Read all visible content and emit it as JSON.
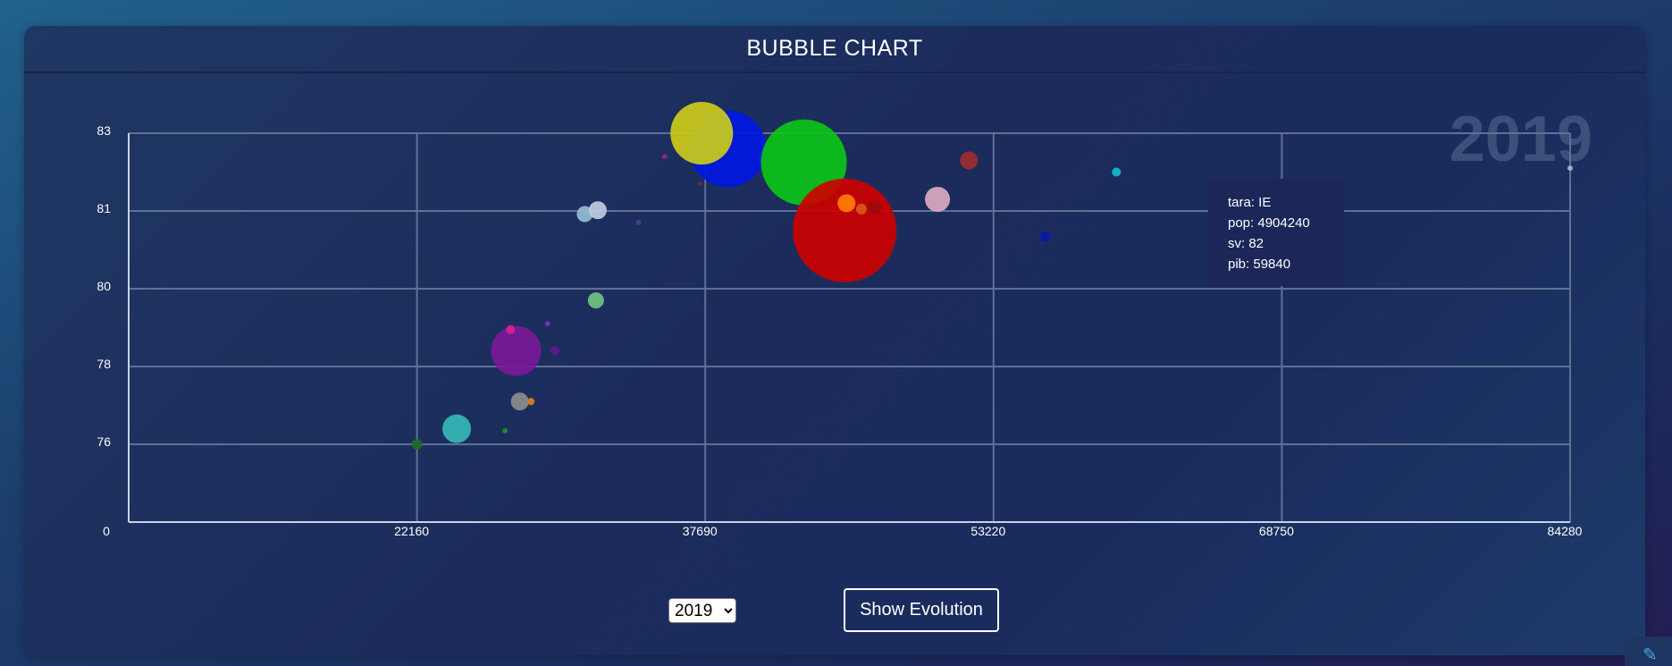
{
  "header": {
    "title": "BUBBLE CHART"
  },
  "controls": {
    "year_select": {
      "value": "2019",
      "options": [
        "2019"
      ]
    },
    "evolution_button_label": "Show Evolution"
  },
  "tooltip": {
    "lines": [
      "tara: IE",
      "pop: 4904240",
      "sv: 82",
      "pib: 59840"
    ]
  },
  "corner_icon": "pencil-icon",
  "chart_data": {
    "type": "scatter",
    "title": "BUBBLE CHART",
    "watermark": "2019",
    "x_ticks": [
      0,
      22160,
      37690,
      53220,
      68750,
      84280
    ],
    "y_ticks": [
      0,
      76,
      78,
      80,
      81,
      83
    ],
    "grid": true,
    "size_field": "pop",
    "points": [
      {
        "x": 22160,
        "y": 76.0,
        "r": 6,
        "color": "#1c6b22",
        "opacity": 0.95
      },
      {
        "x": 24300,
        "y": 76.4,
        "r": 16,
        "color": "#35b3b3",
        "opacity": 0.95
      },
      {
        "x": 26900,
        "y": 76.35,
        "r": 3,
        "color": "#1d8a2a",
        "opacity": 0.95
      },
      {
        "x": 27700,
        "y": 77.1,
        "r": 10,
        "color": "#8a8a8a",
        "opacity": 0.95
      },
      {
        "x": 28300,
        "y": 77.1,
        "r": 4,
        "color": "#e07b1a",
        "opacity": 0.95
      },
      {
        "x": 27500,
        "y": 78.4,
        "r": 28,
        "color": "#7a1899",
        "opacity": 0.9
      },
      {
        "x": 27200,
        "y": 78.95,
        "r": 5,
        "color": "#d61f8f",
        "opacity": 0.95
      },
      {
        "x": 29200,
        "y": 79.1,
        "r": 3,
        "color": "#7a30b0",
        "opacity": 0.95
      },
      {
        "x": 29600,
        "y": 78.4,
        "r": 5,
        "color": "#5a1a90",
        "opacity": 0.95
      },
      {
        "x": 31800,
        "y": 79.7,
        "r": 9,
        "color": "#6fbf7f",
        "opacity": 0.95
      },
      {
        "x": 31200,
        "y": 80.96,
        "r": 9,
        "color": "#8fb8d1",
        "opacity": 0.95
      },
      {
        "x": 31900,
        "y": 81.02,
        "r": 10,
        "color": "#b9c8da",
        "opacity": 0.95
      },
      {
        "x": 34100,
        "y": 80.85,
        "r": 3,
        "color": "#4a3d95",
        "opacity": 0.95
      },
      {
        "x": 35500,
        "y": 82.4,
        "r": 3,
        "color": "#8a2f6a",
        "opacity": 0.95
      },
      {
        "x": 37400,
        "y": 81.7,
        "r": 2,
        "color": "#8a2020",
        "opacity": 0.95
      },
      {
        "x": 38900,
        "y": 82.6,
        "r": 43,
        "color": "#0018e0",
        "opacity": 0.92
      },
      {
        "x": 37500,
        "y": 83.0,
        "r": 35,
        "color": "#cccc1a",
        "opacity": 0.92
      },
      {
        "x": 43000,
        "y": 82.25,
        "r": 48,
        "color": "#0cc417",
        "opacity": 0.92
      },
      {
        "x": 45200,
        "y": 80.75,
        "r": 58,
        "color": "#cc0000",
        "opacity": 0.92
      },
      {
        "x": 45300,
        "y": 81.2,
        "r": 10,
        "color": "#ff7a00",
        "opacity": 0.95
      },
      {
        "x": 46100,
        "y": 81.05,
        "r": 6,
        "color": "#d9531a",
        "opacity": 0.95
      },
      {
        "x": 46800,
        "y": 81.08,
        "r": 8,
        "color": "#9e0a0a",
        "opacity": 0.95
      },
      {
        "x": 50200,
        "y": 81.3,
        "r": 14,
        "color": "#d8a6bd",
        "opacity": 0.95
      },
      {
        "x": 51900,
        "y": 82.3,
        "r": 10,
        "color": "#9c2b30",
        "opacity": 0.95
      },
      {
        "x": 56000,
        "y": 80.67,
        "r": 6,
        "color": "#0a1aa0",
        "opacity": 0.95
      },
      {
        "x": 59840,
        "y": 82.0,
        "r": 5,
        "color": "#16b6c8",
        "opacity": 0.95
      },
      {
        "x": 84280,
        "y": 82.1,
        "r": 3,
        "color": "#9fb0d0",
        "opacity": 0.95
      }
    ]
  }
}
